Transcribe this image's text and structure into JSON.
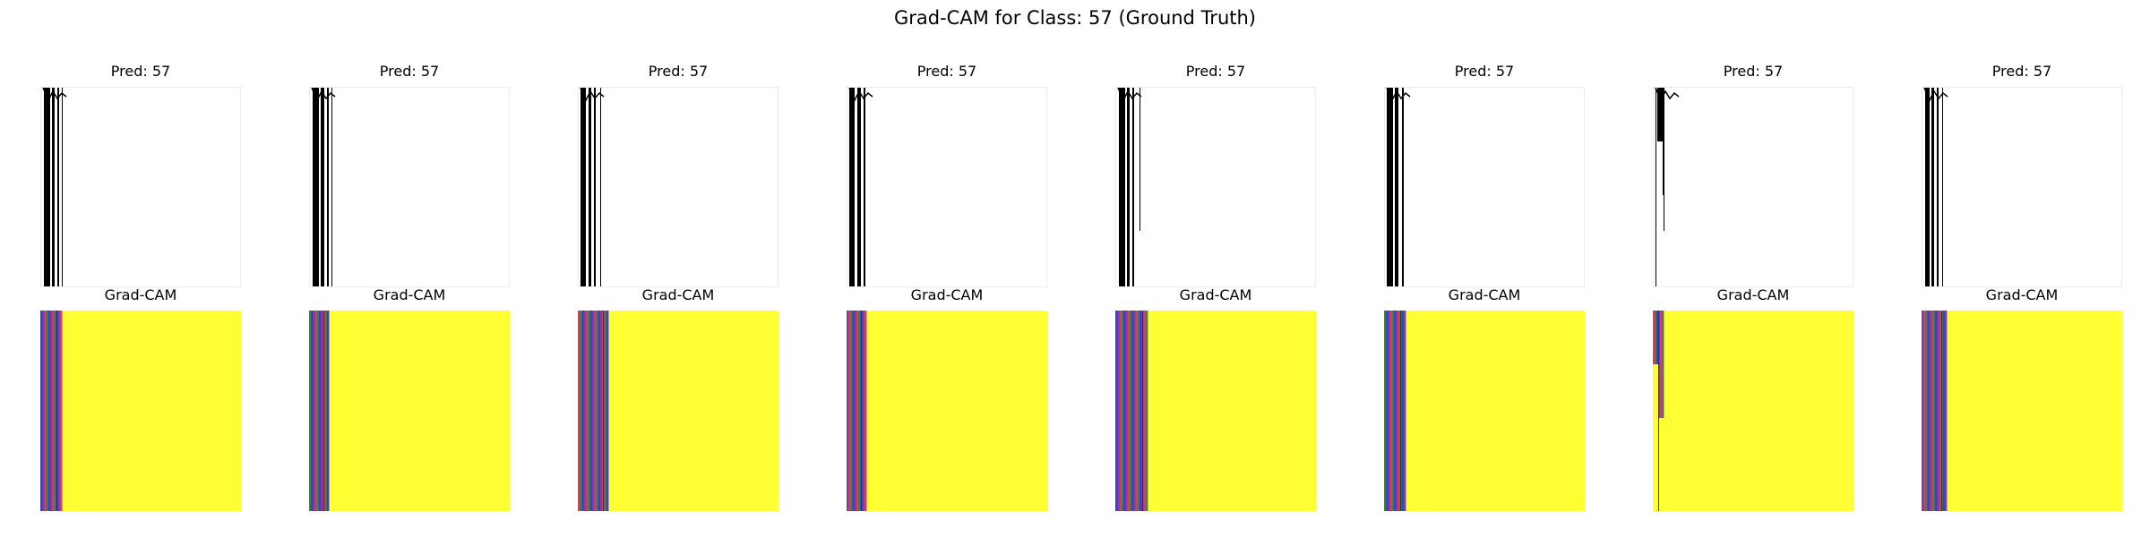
{
  "figure": {
    "title": "Grad-CAM for Class: 57 (Ground Truth)"
  },
  "chart_data": {
    "type": "image-grid",
    "title": "Grad-CAM for Class: 57 (Ground Truth)",
    "rows": 2,
    "cols": 8,
    "samples": [
      {
        "pred_title": "Pred: 57",
        "cam_title": "Grad-CAM"
      },
      {
        "pred_title": "Pred: 57",
        "cam_title": "Grad-CAM"
      },
      {
        "pred_title": "Pred: 57",
        "cam_title": "Grad-CAM"
      },
      {
        "pred_title": "Pred: 57",
        "cam_title": "Grad-CAM"
      },
      {
        "pred_title": "Pred: 57",
        "cam_title": "Grad-CAM"
      },
      {
        "pred_title": "Pred: 57",
        "cam_title": "Grad-CAM"
      },
      {
        "pred_title": "Pred: 57",
        "cam_title": "Grad-CAM"
      },
      {
        "pred_title": "Pred: 57",
        "cam_title": "Grad-CAM"
      }
    ],
    "heatmap_colors": {
      "background": "#ffff33",
      "stripes": [
        "#3b3bd9",
        "#2e8b3a",
        "#e8365a",
        "#7a3fa0",
        "#ffff33"
      ]
    },
    "axis": "off"
  }
}
